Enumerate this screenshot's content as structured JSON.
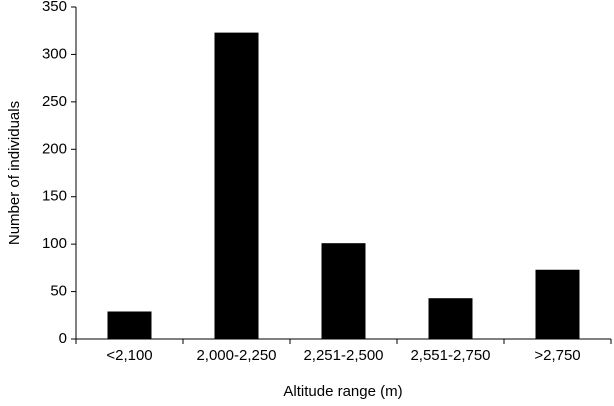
{
  "chart_data": {
    "type": "bar",
    "x_label": "Altitude range (m)",
    "y_label": "Number of individuals",
    "categories": [
      "<2,100",
      "2,000-2,250",
      "2,251-2,500",
      "2,551-2,750",
      ">2,750"
    ],
    "values": [
      29,
      323,
      101,
      43,
      73
    ],
    "color": "#000000",
    "ylim": [
      0,
      350
    ],
    "yticks": [
      0,
      50,
      100,
      150,
      200,
      250,
      300,
      350
    ],
    "grid": false
  }
}
